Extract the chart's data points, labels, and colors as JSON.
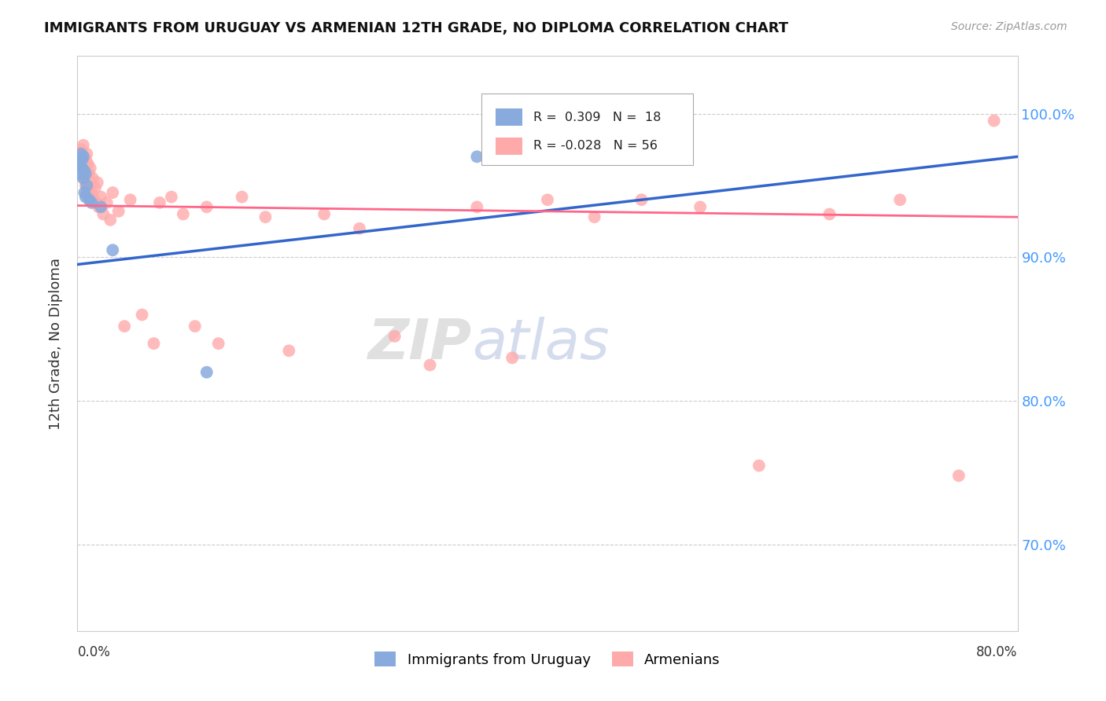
{
  "title": "IMMIGRANTS FROM URUGUAY VS ARMENIAN 12TH GRADE, NO DIPLOMA CORRELATION CHART",
  "source": "Source: ZipAtlas.com",
  "ylabel": "12th Grade, No Diploma",
  "ytick_values": [
    0.7,
    0.8,
    0.9,
    1.0
  ],
  "ytick_labels": [
    "70.0%",
    "80.0%",
    "90.0%",
    "100.0%"
  ],
  "xlim": [
    0.0,
    0.8
  ],
  "ylim": [
    0.64,
    1.04
  ],
  "legend_text1": "R =  0.309   N =  18",
  "legend_text2": "R = -0.028   N = 56",
  "color_uruguay": "#88AADD",
  "color_armenian": "#FFAAAA",
  "trendline_uruguay": "#3366CC",
  "trendline_armenian": "#FF6688",
  "background": "#FFFFFF",
  "watermark_zip": "ZIP",
  "watermark_atlas": "atlas",
  "uruguay_x": [
    0.002,
    0.003,
    0.003,
    0.004,
    0.004,
    0.005,
    0.005,
    0.006,
    0.006,
    0.007,
    0.007,
    0.008,
    0.01,
    0.012,
    0.02,
    0.03,
    0.11,
    0.34
  ],
  "uruguay_y": [
    0.965,
    0.972,
    0.958,
    0.968,
    0.962,
    0.97,
    0.955,
    0.96,
    0.945,
    0.958,
    0.942,
    0.95,
    0.94,
    0.938,
    0.935,
    0.905,
    0.82,
    0.97
  ],
  "armenian_x": [
    0.003,
    0.004,
    0.004,
    0.005,
    0.005,
    0.006,
    0.006,
    0.007,
    0.007,
    0.008,
    0.008,
    0.009,
    0.01,
    0.01,
    0.011,
    0.012,
    0.013,
    0.014,
    0.015,
    0.016,
    0.017,
    0.018,
    0.02,
    0.022,
    0.025,
    0.028,
    0.03,
    0.035,
    0.04,
    0.045,
    0.055,
    0.065,
    0.07,
    0.08,
    0.09,
    0.1,
    0.11,
    0.12,
    0.14,
    0.16,
    0.18,
    0.21,
    0.24,
    0.27,
    0.3,
    0.34,
    0.37,
    0.4,
    0.44,
    0.48,
    0.53,
    0.58,
    0.64,
    0.7,
    0.75,
    0.78
  ],
  "armenian_y": [
    0.975,
    0.972,
    0.965,
    0.978,
    0.96,
    0.97,
    0.955,
    0.968,
    0.95,
    0.972,
    0.945,
    0.965,
    0.958,
    0.948,
    0.962,
    0.945,
    0.955,
    0.94,
    0.948,
    0.938,
    0.952,
    0.935,
    0.942,
    0.93,
    0.938,
    0.926,
    0.945,
    0.932,
    0.852,
    0.94,
    0.86,
    0.84,
    0.938,
    0.942,
    0.93,
    0.852,
    0.935,
    0.84,
    0.942,
    0.928,
    0.835,
    0.93,
    0.92,
    0.845,
    0.825,
    0.935,
    0.83,
    0.94,
    0.928,
    0.94,
    0.935,
    0.755,
    0.93,
    0.94,
    0.748,
    0.995
  ]
}
